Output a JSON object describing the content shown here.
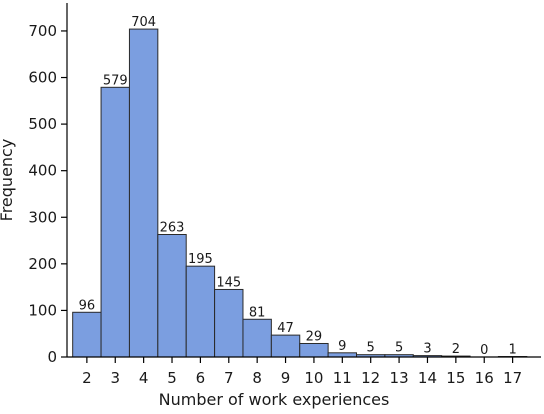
{
  "colors": {
    "bar_fill": "#7b9ee0",
    "bar_edge": "#2a2a2a",
    "axis": "#000000",
    "text": "#1a1a1a"
  },
  "chart_data": {
    "type": "bar",
    "title": "",
    "xlabel": "Number of work experiences",
    "ylabel": "Frequency",
    "categories": [
      "2",
      "3",
      "4",
      "5",
      "6",
      "7",
      "8",
      "9",
      "10",
      "11",
      "12",
      "13",
      "14",
      "15",
      "16",
      "17"
    ],
    "values": [
      96,
      579,
      704,
      263,
      195,
      145,
      81,
      47,
      29,
      9,
      5,
      5,
      3,
      2,
      0,
      1
    ],
    "yticks": [
      0,
      100,
      200,
      300,
      400,
      500,
      600,
      700
    ],
    "ylim": [
      0,
      760
    ],
    "xlim": [
      1.3,
      18.0
    ],
    "grid": false,
    "legend": "none"
  }
}
